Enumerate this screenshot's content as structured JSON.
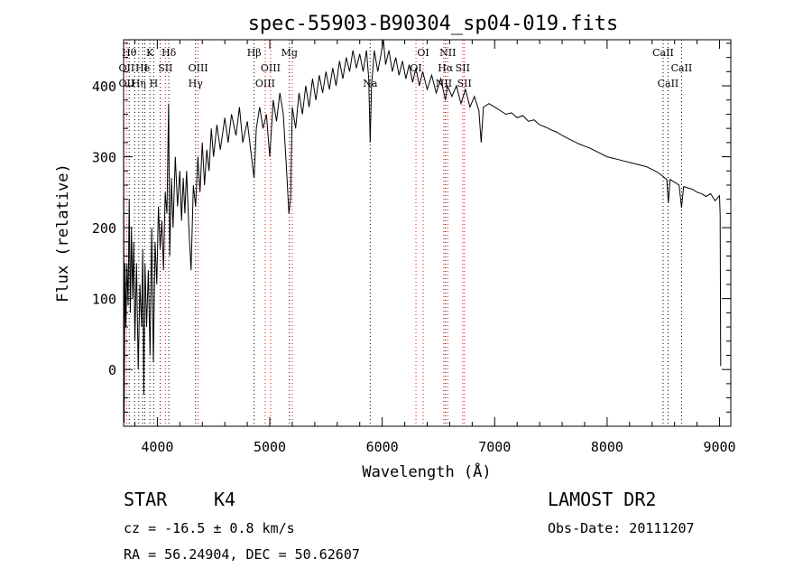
{
  "chart_data": {
    "type": "line",
    "title": "spec-55903-B90304_sp04-019.fits",
    "xlabel": "Wavelength (Å)",
    "ylabel": "Flux (relative)",
    "xlim": [
      3700,
      9100
    ],
    "ylim": [
      -80,
      465
    ],
    "x_ticks": [
      4000,
      5000,
      6000,
      7000,
      8000,
      9000
    ],
    "y_ticks": [
      0,
      100,
      200,
      300,
      400
    ],
    "grid": false,
    "series": [
      {
        "color": "#000000",
        "points": [
          [
            3700,
            405
          ],
          [
            3705,
            -75
          ],
          [
            3712,
            150
          ],
          [
            3720,
            60
          ],
          [
            3730,
            150
          ],
          [
            3740,
            90
          ],
          [
            3750,
            240
          ],
          [
            3760,
            80
          ],
          [
            3770,
            200
          ],
          [
            3780,
            100
          ],
          [
            3790,
            180
          ],
          [
            3800,
            40
          ],
          [
            3815,
            150
          ],
          [
            3830,
            0
          ],
          [
            3845,
            120
          ],
          [
            3860,
            60
          ],
          [
            3870,
            170
          ],
          [
            3880,
            -35
          ],
          [
            3890,
            150
          ],
          [
            3905,
            60
          ],
          [
            3920,
            140
          ],
          [
            3935,
            20
          ],
          [
            3950,
            200
          ],
          [
            3965,
            10
          ],
          [
            3980,
            180
          ],
          [
            3995,
            120
          ],
          [
            4010,
            230
          ],
          [
            4025,
            170
          ],
          [
            4040,
            210
          ],
          [
            4055,
            140
          ],
          [
            4070,
            250
          ],
          [
            4085,
            220
          ],
          [
            4100,
            375
          ],
          [
            4110,
            160
          ],
          [
            4125,
            270
          ],
          [
            4140,
            200
          ],
          [
            4160,
            300
          ],
          [
            4180,
            230
          ],
          [
            4200,
            280
          ],
          [
            4215,
            210
          ],
          [
            4230,
            270
          ],
          [
            4245,
            220
          ],
          [
            4260,
            280
          ],
          [
            4280,
            200
          ],
          [
            4300,
            140
          ],
          [
            4320,
            260
          ],
          [
            4340,
            230
          ],
          [
            4360,
            300
          ],
          [
            4380,
            250
          ],
          [
            4400,
            320
          ],
          [
            4420,
            260
          ],
          [
            4440,
            310
          ],
          [
            4460,
            280
          ],
          [
            4480,
            340
          ],
          [
            4500,
            300
          ],
          [
            4530,
            345
          ],
          [
            4560,
            310
          ],
          [
            4600,
            355
          ],
          [
            4630,
            320
          ],
          [
            4660,
            360
          ],
          [
            4700,
            330
          ],
          [
            4730,
            370
          ],
          [
            4760,
            320
          ],
          [
            4800,
            350
          ],
          [
            4830,
            310
          ],
          [
            4860,
            270
          ],
          [
            4880,
            340
          ],
          [
            4910,
            370
          ],
          [
            4940,
            340
          ],
          [
            4970,
            360
          ],
          [
            5000,
            300
          ],
          [
            5030,
            380
          ],
          [
            5060,
            350
          ],
          [
            5090,
            390
          ],
          [
            5120,
            360
          ],
          [
            5150,
            280
          ],
          [
            5170,
            220
          ],
          [
            5185,
            240
          ],
          [
            5200,
            370
          ],
          [
            5230,
            340
          ],
          [
            5260,
            390
          ],
          [
            5290,
            360
          ],
          [
            5320,
            400
          ],
          [
            5350,
            370
          ],
          [
            5380,
            410
          ],
          [
            5410,
            380
          ],
          [
            5440,
            415
          ],
          [
            5470,
            390
          ],
          [
            5500,
            420
          ],
          [
            5530,
            395
          ],
          [
            5560,
            425
          ],
          [
            5590,
            400
          ],
          [
            5620,
            435
          ],
          [
            5650,
            410
          ],
          [
            5680,
            440
          ],
          [
            5710,
            420
          ],
          [
            5740,
            450
          ],
          [
            5770,
            425
          ],
          [
            5800,
            445
          ],
          [
            5830,
            420
          ],
          [
            5860,
            450
          ],
          [
            5880,
            410
          ],
          [
            5893,
            320
          ],
          [
            5905,
            400
          ],
          [
            5930,
            450
          ],
          [
            5960,
            420
          ],
          [
            5990,
            445
          ],
          [
            6010,
            465
          ],
          [
            6030,
            430
          ],
          [
            6060,
            450
          ],
          [
            6090,
            420
          ],
          [
            6120,
            440
          ],
          [
            6150,
            415
          ],
          [
            6180,
            435
          ],
          [
            6210,
            410
          ],
          [
            6240,
            430
          ],
          [
            6270,
            405
          ],
          [
            6300,
            425
          ],
          [
            6330,
            400
          ],
          [
            6360,
            420
          ],
          [
            6400,
            395
          ],
          [
            6440,
            415
          ],
          [
            6480,
            390
          ],
          [
            6520,
            410
          ],
          [
            6562,
            380
          ],
          [
            6580,
            400
          ],
          [
            6620,
            385
          ],
          [
            6660,
            400
          ],
          [
            6700,
            375
          ],
          [
            6740,
            395
          ],
          [
            6780,
            370
          ],
          [
            6820,
            385
          ],
          [
            6860,
            365
          ],
          [
            6880,
            320
          ],
          [
            6900,
            370
          ],
          [
            6950,
            375
          ],
          [
            7000,
            370
          ],
          [
            7050,
            365
          ],
          [
            7100,
            360
          ],
          [
            7150,
            362
          ],
          [
            7200,
            355
          ],
          [
            7250,
            358
          ],
          [
            7300,
            350
          ],
          [
            7350,
            352
          ],
          [
            7400,
            345
          ],
          [
            7450,
            342
          ],
          [
            7500,
            338
          ],
          [
            7550,
            335
          ],
          [
            7600,
            330
          ],
          [
            7650,
            326
          ],
          [
            7700,
            322
          ],
          [
            7750,
            318
          ],
          [
            7800,
            315
          ],
          [
            7850,
            312
          ],
          [
            7900,
            308
          ],
          [
            7950,
            304
          ],
          [
            8000,
            300
          ],
          [
            8050,
            298
          ],
          [
            8100,
            296
          ],
          [
            8150,
            294
          ],
          [
            8200,
            292
          ],
          [
            8250,
            290
          ],
          [
            8300,
            288
          ],
          [
            8350,
            286
          ],
          [
            8400,
            282
          ],
          [
            8450,
            278
          ],
          [
            8500,
            272
          ],
          [
            8530,
            268
          ],
          [
            8545,
            235
          ],
          [
            8560,
            268
          ],
          [
            8600,
            264
          ],
          [
            8640,
            260
          ],
          [
            8662,
            228
          ],
          [
            8680,
            258
          ],
          [
            8720,
            256
          ],
          [
            8760,
            254
          ],
          [
            8800,
            250
          ],
          [
            8840,
            248
          ],
          [
            8880,
            244
          ],
          [
            8920,
            248
          ],
          [
            8960,
            238
          ],
          [
            9000,
            245
          ],
          [
            9005,
            218
          ],
          [
            9010,
            5
          ]
        ]
      }
    ],
    "lines": [
      {
        "x": 3727,
        "color": "#ff0000"
      },
      {
        "x": 3750,
        "color": "#000000"
      },
      {
        "x": 3798,
        "color": "#000000"
      },
      {
        "x": 3835,
        "color": "#000000"
      },
      {
        "x": 3869,
        "color": "#000000"
      },
      {
        "x": 3889,
        "color": "#000000"
      },
      {
        "x": 3934,
        "color": "#000000"
      },
      {
        "x": 3968,
        "color": "#000000"
      },
      {
        "x": 4026,
        "color": "#000000"
      },
      {
        "x": 4072,
        "color": "#ff0000"
      },
      {
        "x": 4102,
        "color": "#000000"
      },
      {
        "x": 4340,
        "color": "#000000"
      },
      {
        "x": 4363,
        "color": "#ff0000"
      },
      {
        "x": 4861,
        "color": "#000000"
      },
      {
        "x": 4959,
        "color": "#ff0000"
      },
      {
        "x": 5007,
        "color": "#ff0000"
      },
      {
        "x": 5175,
        "color": "#000000"
      },
      {
        "x": 5200,
        "color": "#ff0000"
      },
      {
        "x": 5893,
        "color": "#000000"
      },
      {
        "x": 6300,
        "color": "#ff0000"
      },
      {
        "x": 6364,
        "color": "#ff0000"
      },
      {
        "x": 6548,
        "color": "#ff0000"
      },
      {
        "x": 6563,
        "color": "#000000"
      },
      {
        "x": 6583,
        "color": "#ff0000"
      },
      {
        "x": 6716,
        "color": "#ff0000"
      },
      {
        "x": 6731,
        "color": "#ff0000"
      },
      {
        "x": 8498,
        "color": "#000000"
      },
      {
        "x": 8542,
        "color": "#000000"
      },
      {
        "x": 8662,
        "color": "#000000"
      }
    ],
    "line_labels": [
      {
        "text": "Hθ",
        "x": 3750,
        "row": 1
      },
      {
        "text": "K",
        "x": 3934,
        "row": 1
      },
      {
        "text": "Hδ",
        "x": 4102,
        "row": 1
      },
      {
        "text": "Hβ",
        "x": 4861,
        "row": 1
      },
      {
        "text": "Mg",
        "x": 5175,
        "row": 1
      },
      {
        "text": "OI",
        "x": 6364,
        "row": 1
      },
      {
        "text": "NII",
        "x": 6583,
        "row": 1
      },
      {
        "text": "CaII",
        "x": 8498,
        "row": 1
      },
      {
        "text": "OII",
        "x": 3727,
        "row": 2
      },
      {
        "text": "He",
        "x": 3869,
        "row": 2
      },
      {
        "text": "I",
        "x": 3900,
        "row": 2
      },
      {
        "text": "SII",
        "x": 4072,
        "row": 2
      },
      {
        "text": "OIII",
        "x": 4363,
        "row": 2
      },
      {
        "text": "OIII",
        "x": 5007,
        "row": 2
      },
      {
        "text": "OI",
        "x": 6300,
        "row": 2
      },
      {
        "text": "Hα",
        "x": 6563,
        "row": 2
      },
      {
        "text": "SII",
        "x": 6716,
        "row": 2
      },
      {
        "text": "CaII",
        "x": 8662,
        "row": 2
      },
      {
        "text": "OII",
        "x": 3727,
        "row": 3
      },
      {
        "text": "Hη",
        "x": 3835,
        "row": 3
      },
      {
        "text": "H",
        "x": 3968,
        "row": 3
      },
      {
        "text": "Hγ",
        "x": 4340,
        "row": 3
      },
      {
        "text": "OIII",
        "x": 4959,
        "row": 3
      },
      {
        "text": "Na",
        "x": 5893,
        "row": 3
      },
      {
        "text": "NII",
        "x": 6548,
        "row": 3
      },
      {
        "text": "SII",
        "x": 6731,
        "row": 3
      },
      {
        "text": "CaII",
        "x": 8542,
        "row": 3
      }
    ]
  },
  "footer": {
    "class_label": "STAR",
    "subclass": "K4",
    "survey": "LAMOST DR2",
    "cz": "cz = -16.5 ± 0.8 km/s",
    "obs_date": "Obs-Date: 20111207",
    "coords": "RA =  56.24904, DEC =  50.62607"
  }
}
